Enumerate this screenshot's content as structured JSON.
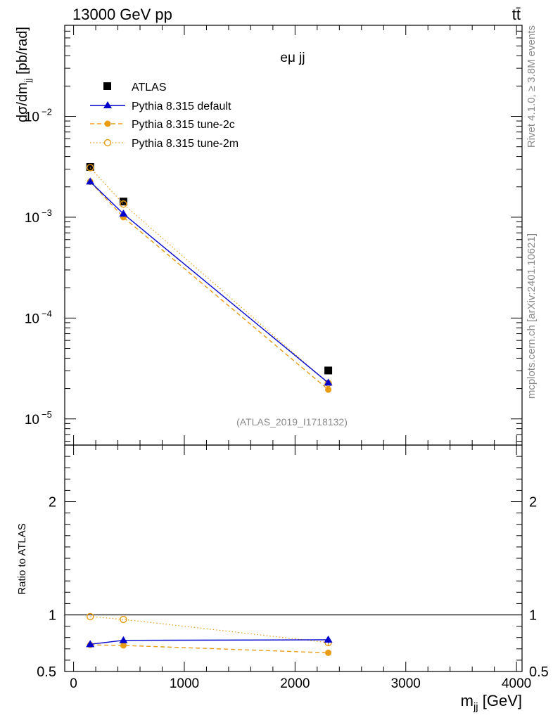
{
  "header": {
    "energy_label": "13000 GeV pp",
    "process_label": "tt̄",
    "channel_label": "eμ jj",
    "side_label_top": "Rivet 4.1.0, ≥ 3.8M events",
    "side_label_bottom": "mcplots.cern.ch [arXiv:2401.10621]",
    "analysis_id": "(ATLAS_2019_I1718132)"
  },
  "chart_data": [
    {
      "type": "scatter",
      "panel": "main",
      "title": "eμ jj",
      "xlabel": "m_jj [GeV]",
      "ylabel": "dσ/dm_jj [pb/rad]",
      "yscale": "log",
      "xlim": [
        -80,
        4050
      ],
      "ylim": [
        5.5e-06,
        0.08
      ],
      "y_ticks": [
        {
          "value": 1e-05,
          "label": "10",
          "exp": "−5"
        },
        {
          "value": 0.0001,
          "label": "10",
          "exp": "−4"
        },
        {
          "value": 0.001,
          "label": "10",
          "exp": "−3"
        },
        {
          "value": 0.01,
          "label": "10",
          "exp": "−2"
        }
      ],
      "x": [
        150,
        450,
        2300
      ],
      "series": [
        {
          "name": "ATLAS",
          "style": "data",
          "color": "#000000",
          "marker": "square",
          "values": [
            0.00315,
            0.00143,
            3.02e-05
          ]
        },
        {
          "name": "Pythia 8.315 default",
          "style": "solid",
          "color": "#0000cc",
          "marker": "triangle",
          "values": [
            0.00225,
            0.00108,
            2.28e-05
          ],
          "error_last": 1.2e-06
        },
        {
          "name": "Pythia 8.315 tune-2c",
          "style": "dashed",
          "color": "#e89c14",
          "marker": "circle-filled",
          "values": [
            0.00225,
            0.001,
            1.95e-05
          ],
          "error_last": 8e-07
        },
        {
          "name": "Pythia 8.315 tune-2m",
          "style": "dotted",
          "color": "#e89c14",
          "marker": "circle-open",
          "values": [
            0.0031,
            0.00135,
            2.25e-05
          ],
          "error_last": 8e-07
        }
      ],
      "legend": "top-left"
    },
    {
      "type": "scatter",
      "panel": "ratio",
      "ylabel": "Ratio to ATLAS",
      "xlabel": "m_jj [GeV]",
      "xlim": [
        -80,
        4050
      ],
      "ylim": [
        0.5,
        2.5
      ],
      "y_ticks": [
        {
          "value": 0.5,
          "label": "0.5"
        },
        {
          "value": 1,
          "label": "1"
        },
        {
          "value": 2,
          "label": "2"
        }
      ],
      "x_ticks": [
        {
          "value": 0,
          "label": "0"
        },
        {
          "value": 1000,
          "label": "1000"
        },
        {
          "value": 2000,
          "label": "2000"
        },
        {
          "value": 3000,
          "label": "3000"
        },
        {
          "value": 4000,
          "label": "4000"
        }
      ],
      "x": [
        150,
        450,
        2300
      ],
      "reference": 1,
      "series": [
        {
          "name": "Pythia 8.315 default",
          "style": "solid",
          "color": "#0000cc",
          "marker": "triangle",
          "values": [
            0.74,
            0.775,
            0.78
          ],
          "error_last": 0.03
        },
        {
          "name": "Pythia 8.315 tune-2c",
          "style": "dashed",
          "color": "#e89c14",
          "marker": "circle-filled",
          "values": [
            0.735,
            0.73,
            0.665
          ],
          "error_last": 0.025
        },
        {
          "name": "Pythia 8.315 tune-2m",
          "style": "dotted",
          "color": "#e89c14",
          "marker": "circle-open",
          "values": [
            0.985,
            0.96,
            0.755
          ],
          "error_last": 0.025
        }
      ]
    }
  ]
}
